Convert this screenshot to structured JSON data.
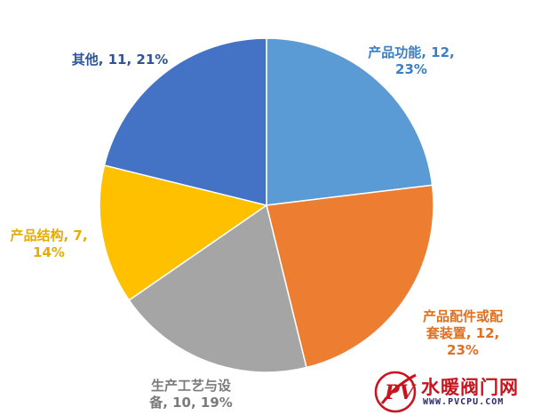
{
  "chart_data": {
    "type": "pie",
    "start": "top",
    "direction": "clockwise",
    "slices": [
      {
        "name": "产品功能",
        "value": 12,
        "percent": "23%",
        "color": "#5b9bd5",
        "label_lines": [
          "产品功能, 12,",
          "23%"
        ],
        "label_color": "#3d7fc4"
      },
      {
        "name": "产品配件或配套装置",
        "value": 12,
        "percent": "23%",
        "color": "#ed7d31",
        "label_lines": [
          "产品配件或配",
          "套装置, 12,",
          "23%"
        ],
        "label_color": "#e07020"
      },
      {
        "name": "生产工艺与设备",
        "value": 10,
        "percent": "19%",
        "color": "#a5a5a5",
        "label_lines": [
          "生产工艺与设",
          "备, 10, 19%"
        ],
        "label_color": "#7a7a7a"
      },
      {
        "name": "产品结构",
        "value": 7,
        "percent": "14%",
        "color": "#ffc000",
        "label_lines": [
          "产品结构, 7,",
          "14%"
        ],
        "label_color": "#e6ac00"
      },
      {
        "name": "其他",
        "value": 11,
        "percent": "21%",
        "color": "#4472c4",
        "label_lines": [
          "其他, 11, 21%"
        ],
        "label_color": "#2f5597"
      }
    ]
  },
  "watermark": {
    "text": "水暖阀门网",
    "url": "WWW.PVCPU.COM",
    "logo_letters": "PV"
  }
}
